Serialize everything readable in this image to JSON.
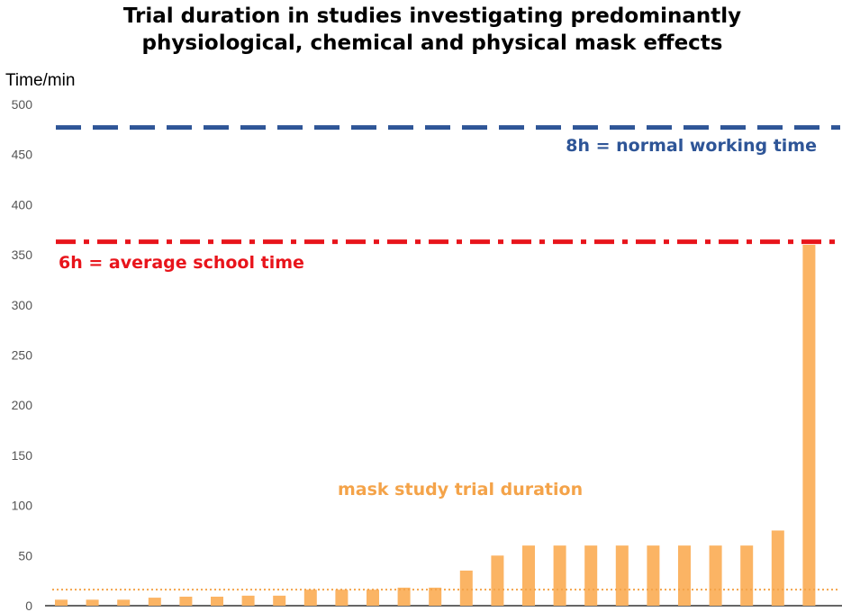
{
  "chart_data": {
    "type": "bar",
    "title_lines": [
      "Trial duration in studies investigating predominantly",
      "physiological, chemical and physical mask effects"
    ],
    "ylabel": "Time/min",
    "ylim": [
      0,
      500
    ],
    "yticks": [
      0,
      50,
      100,
      150,
      200,
      250,
      300,
      350,
      400,
      450,
      500
    ],
    "grid": false,
    "values": [
      6,
      6,
      6,
      8,
      9,
      9,
      10,
      10,
      16,
      16,
      16,
      18,
      18,
      35,
      50,
      60,
      60,
      60,
      60,
      60,
      60,
      60,
      60,
      75,
      360
    ],
    "bar_color": "#FBB464",
    "reference_lines": [
      {
        "value": 477,
        "label": "8h = normal working time",
        "color": "#2E5597",
        "style": "dashed"
      },
      {
        "value": 363,
        "label": "6h = average school time",
        "color": "#E8141B",
        "style": "dashdot"
      },
      {
        "value": 16,
        "label": "",
        "color": "#F4A349",
        "style": "dotted"
      }
    ],
    "series_label": "mask study trial duration",
    "series_label_color": "#F4A349"
  }
}
